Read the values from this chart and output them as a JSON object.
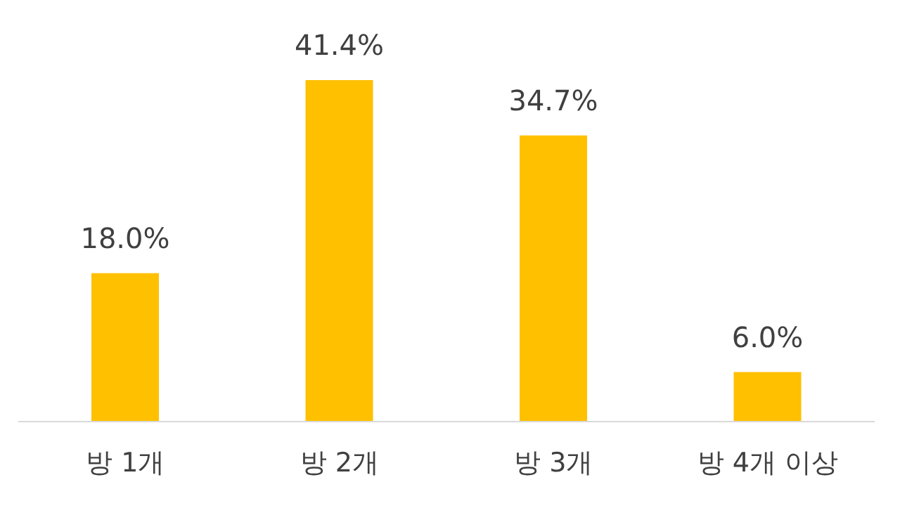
{
  "chart_data": {
    "type": "bar",
    "categories": [
      "방 1개",
      "방 2개",
      "방 3개",
      "방 4개 이상"
    ],
    "values": [
      18.0,
      41.4,
      34.7,
      6.0
    ],
    "color": "#ffc000",
    "value_labels": [
      "18.0%",
      "41.4%",
      "34.7%",
      "6.0%"
    ]
  }
}
